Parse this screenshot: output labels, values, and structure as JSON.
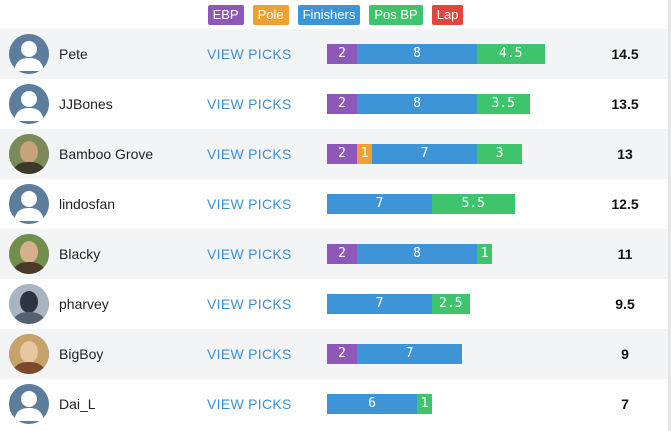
{
  "legend": [
    {
      "key": "ebp",
      "label": "EBP",
      "color": "#8e58b8"
    },
    {
      "key": "pole",
      "label": "Pole",
      "color": "#f0a030"
    },
    {
      "key": "finishers",
      "label": "Finishers",
      "color": "#3d95d8"
    },
    {
      "key": "posbp",
      "label": "Pos BP",
      "color": "#3ec46d"
    },
    {
      "key": "lap",
      "label": "Lap",
      "color": "#e0463c"
    }
  ],
  "scale_note": "bar lengths proportional to points",
  "view_label": "VIEW PICKS",
  "players": [
    {
      "name": "Pete",
      "avatar": "default-avatar-icon",
      "segments": [
        {
          "key": "ebp",
          "value": "2"
        },
        {
          "key": "finishers",
          "value": "8"
        },
        {
          "key": "posbp",
          "value": "4.5"
        }
      ],
      "total": "14.5"
    },
    {
      "name": "JJBones",
      "avatar": "default-avatar-icon",
      "segments": [
        {
          "key": "ebp",
          "value": "2"
        },
        {
          "key": "finishers",
          "value": "8"
        },
        {
          "key": "posbp",
          "value": "3.5"
        }
      ],
      "total": "13.5"
    },
    {
      "name": "Bamboo Grove",
      "avatar": "photo-avatar",
      "segments": [
        {
          "key": "ebp",
          "value": "2"
        },
        {
          "key": "pole",
          "value": "1"
        },
        {
          "key": "finishers",
          "value": "7"
        },
        {
          "key": "posbp",
          "value": "3"
        }
      ],
      "total": "13"
    },
    {
      "name": "lindosfan",
      "avatar": "default-avatar-icon",
      "segments": [
        {
          "key": "finishers",
          "value": "7"
        },
        {
          "key": "posbp",
          "value": "5.5"
        }
      ],
      "total": "12.5"
    },
    {
      "name": "Blacky",
      "avatar": "photo-avatar",
      "segments": [
        {
          "key": "ebp",
          "value": "2"
        },
        {
          "key": "finishers",
          "value": "8"
        },
        {
          "key": "posbp",
          "value": "1"
        }
      ],
      "total": "11"
    },
    {
      "name": "pharvey",
      "avatar": "photo-avatar",
      "segments": [
        {
          "key": "finishers",
          "value": "7"
        },
        {
          "key": "posbp",
          "value": "2.5"
        }
      ],
      "total": "9.5"
    },
    {
      "name": "BigBoy",
      "avatar": "photo-avatar",
      "segments": [
        {
          "key": "ebp",
          "value": "2"
        },
        {
          "key": "finishers",
          "value": "7"
        }
      ],
      "total": "9"
    },
    {
      "name": "Dai_L",
      "avatar": "default-avatar-icon",
      "segments": [
        {
          "key": "finishers",
          "value": "6"
        },
        {
          "key": "posbp",
          "value": "1"
        }
      ],
      "total": "7"
    }
  ]
}
